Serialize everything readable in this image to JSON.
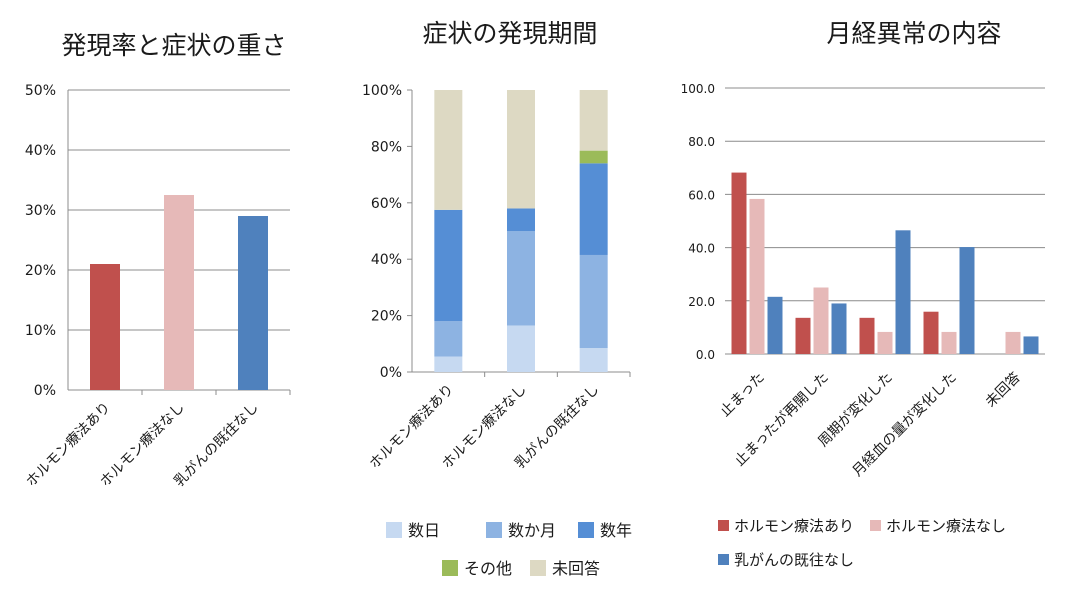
{
  "colors": {
    "hormone_yes": "#C0504D",
    "hormone_no": "#E6B9B8",
    "no_history": "#4F81BD",
    "days": "#C6D9F1",
    "months": "#8DB3E2",
    "years": "#558ED5",
    "other": "#9BBB59",
    "no_answer": "#DDD9C3"
  },
  "chart_data": [
    {
      "type": "bar",
      "title": "発現率と症状の重さ",
      "categories": [
        "ホルモン療法あり",
        "ホルモン療法なし",
        "乳がんの既往なし"
      ],
      "values": [
        21,
        32.5,
        29
      ],
      "bar_colors": [
        "#C0504D",
        "#E6B9B8",
        "#4F81BD"
      ],
      "ylim": [
        0,
        50
      ],
      "yticks": [
        "0%",
        "10%",
        "20%",
        "30%",
        "40%",
        "50%"
      ],
      "grid": true
    },
    {
      "type": "bar",
      "stacked": true,
      "title": "症状の発現期間",
      "categories": [
        "ホルモン療法あり",
        "ホルモン療法なし",
        "乳がんの既往なし"
      ],
      "series": [
        {
          "name": "数日",
          "values": [
            5.5,
            16.5,
            8.5
          ]
        },
        {
          "name": "数か月",
          "values": [
            12.5,
            33.5,
            33
          ]
        },
        {
          "name": "数年",
          "values": [
            39.5,
            8,
            32.5
          ]
        },
        {
          "name": "その他",
          "values": [
            0,
            0,
            4.5
          ]
        },
        {
          "name": "未回答",
          "values": [
            42.5,
            42,
            21.5
          ]
        }
      ],
      "ylim": [
        0,
        100
      ],
      "yticks": [
        "0%",
        "20%",
        "40%",
        "60%",
        "80%",
        "100%"
      ],
      "legend": "bottom",
      "grid": false
    },
    {
      "type": "bar",
      "title": "月経異常の内容",
      "categories": [
        "止まった",
        "止まったが再開した",
        "周期が変化した",
        "月経血の量が変化した",
        "未回答"
      ],
      "series": [
        {
          "name": "ホルモン療法あり",
          "values": [
            68.2,
            13.6,
            13.6,
            15.9,
            0
          ]
        },
        {
          "name": "ホルモン療法なし",
          "values": [
            58.3,
            25,
            8.3,
            8.3,
            8.3
          ]
        },
        {
          "name": "乳がんの既往なし",
          "values": [
            21.5,
            19,
            46.5,
            40.2,
            6.6
          ]
        }
      ],
      "ylim": [
        0,
        100
      ],
      "yticks": [
        "0.0",
        "20.0",
        "40.0",
        "60.0",
        "80.0",
        "100.0"
      ],
      "legend": "bottom",
      "grid": true
    }
  ]
}
